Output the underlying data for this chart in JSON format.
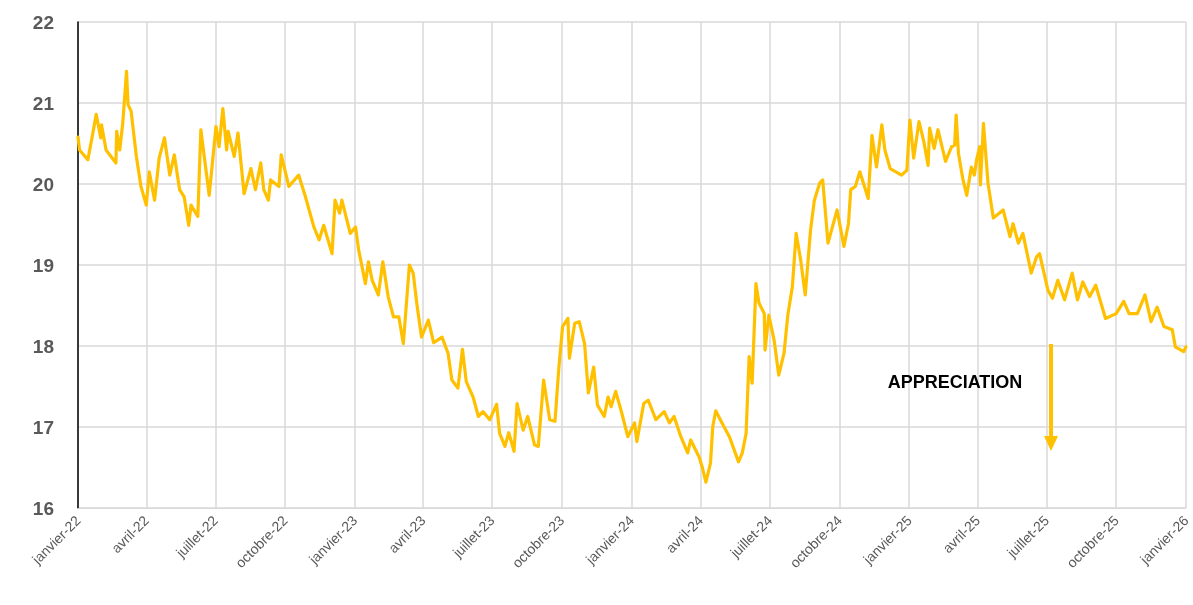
{
  "chart_data": {
    "type": "line",
    "annotations": [
      "APPRECIATION"
    ],
    "xlim": [
      "2022-01-01",
      "2026-01-01"
    ],
    "xticks": [
      {
        "value": "2022-01",
        "label": "janvier-22"
      },
      {
        "value": "2022-04",
        "label": "avril-22"
      },
      {
        "value": "2022-07",
        "label": "juillet-22"
      },
      {
        "value": "2022-10",
        "label": "octobre-22"
      },
      {
        "value": "2023-01",
        "label": "janvier-23"
      },
      {
        "value": "2023-04",
        "label": "avril-23"
      },
      {
        "value": "2023-07",
        "label": "juillet-23"
      },
      {
        "value": "2023-10",
        "label": "octobre-23"
      },
      {
        "value": "2024-01",
        "label": "janvier-24"
      },
      {
        "value": "2024-04",
        "label": "avril-24"
      },
      {
        "value": "2024-07",
        "label": "juillet-24"
      },
      {
        "value": "2024-10",
        "label": "octobre-24"
      },
      {
        "value": "2025-01",
        "label": "janvier-25"
      },
      {
        "value": "2025-04",
        "label": "avril-25"
      },
      {
        "value": "2025-07",
        "label": "juillet-25"
      },
      {
        "value": "2025-10",
        "label": "octobre-25"
      },
      {
        "value": "2026-01",
        "label": "janvier-26"
      }
    ],
    "ylim": [
      16,
      22
    ],
    "yticks": [
      16,
      17,
      18,
      19,
      20,
      21,
      22
    ],
    "grid": true,
    "marker": "none",
    "line_style": "solid",
    "x": [
      "2022-01-01",
      "2022-01-03",
      "2022-01-14",
      "2022-01-21",
      "2022-01-25",
      "2022-01-31",
      "2022-02-01",
      "2022-02-07",
      "2022-02-20",
      "2022-02-21",
      "2022-02-25",
      "2022-03-01",
      "2022-03-06",
      "2022-03-08",
      "2022-03-12",
      "2022-03-19",
      "2022-03-25",
      "2022-04-01",
      "2022-04-05",
      "2022-04-12",
      "2022-04-18",
      "2022-04-25",
      "2022-05-02",
      "2022-05-08",
      "2022-05-15",
      "2022-05-21",
      "2022-05-27",
      "2022-05-30",
      "2022-06-08",
      "2022-06-12",
      "2022-06-23",
      "2022-07-02",
      "2022-07-06",
      "2022-07-11",
      "2022-07-16",
      "2022-07-18",
      "2022-07-26",
      "2022-07-31",
      "2022-08-08",
      "2022-08-17",
      "2022-08-23",
      "2022-08-30",
      "2022-09-03",
      "2022-09-09",
      "2022-09-12",
      "2022-09-23",
      "2022-09-26",
      "2022-10-06",
      "2022-10-19",
      "2022-10-28",
      "2022-11-08",
      "2022-11-15",
      "2022-11-21",
      "2022-12-02",
      "2022-12-06",
      "2022-12-12",
      "2022-12-15",
      "2022-12-26",
      "2023-01-02",
      "2023-01-06",
      "2023-01-15",
      "2023-01-19",
      "2023-01-24",
      "2023-02-01",
      "2023-02-07",
      "2023-02-14",
      "2023-02-21",
      "2023-02-28",
      "2023-03-06",
      "2023-03-14",
      "2023-03-19",
      "2023-03-24",
      "2023-03-30",
      "2023-04-08",
      "2023-04-15",
      "2023-04-26",
      "2023-05-04",
      "2023-05-09",
      "2023-05-17",
      "2023-05-23",
      "2023-05-28",
      "2023-06-06",
      "2023-06-13",
      "2023-06-19",
      "2023-06-28",
      "2023-07-07",
      "2023-07-11",
      "2023-07-18",
      "2023-07-23",
      "2023-07-30",
      "2023-08-03",
      "2023-08-11",
      "2023-08-17",
      "2023-08-26",
      "2023-08-31",
      "2023-09-07",
      "2023-09-15",
      "2023-09-22",
      "2023-09-27",
      "2023-10-02",
      "2023-10-09",
      "2023-10-11",
      "2023-10-18",
      "2023-10-24",
      "2023-10-31",
      "2023-11-05",
      "2023-11-12",
      "2023-11-17",
      "2023-11-26",
      "2023-12-01",
      "2023-12-05",
      "2023-12-11",
      "2023-12-18",
      "2023-12-27",
      "2024-01-05",
      "2024-01-08",
      "2024-01-17",
      "2024-01-23",
      "2024-02-02",
      "2024-02-13",
      "2024-02-20",
      "2024-02-26",
      "2024-03-06",
      "2024-03-15",
      "2024-03-19",
      "2024-03-30",
      "2024-04-03",
      "2024-04-08",
      "2024-04-14",
      "2024-04-17",
      "2024-04-21",
      "2024-04-27",
      "2024-05-02",
      "2024-05-09",
      "2024-05-21",
      "2024-05-26",
      "2024-05-31",
      "2024-06-04",
      "2024-06-08",
      "2024-06-13",
      "2024-06-17",
      "2024-06-24",
      "2024-06-25",
      "2024-06-30",
      "2024-07-07",
      "2024-07-13",
      "2024-07-20",
      "2024-07-25",
      "2024-07-31",
      "2024-08-05",
      "2024-08-11",
      "2024-08-17",
      "2024-08-24",
      "2024-08-29",
      "2024-09-05",
      "2024-09-09",
      "2024-09-16",
      "2024-09-28",
      "2024-10-07",
      "2024-10-13",
      "2024-10-16",
      "2024-10-22",
      "2024-10-28",
      "2024-11-08",
      "2024-11-13",
      "2024-11-19",
      "2024-11-26",
      "2024-11-30",
      "2024-12-07",
      "2024-12-22",
      "2024-12-29",
      "2025-01-02",
      "2025-01-07",
      "2025-01-14",
      "2025-01-20",
      "2025-01-26",
      "2025-01-28",
      "2025-02-03",
      "2025-02-08",
      "2025-02-18",
      "2025-02-26",
      "2025-03-02",
      "2025-03-04",
      "2025-03-07",
      "2025-03-13",
      "2025-03-18",
      "2025-03-24",
      "2025-03-28",
      "2025-03-31",
      "2025-04-04",
      "2025-04-05",
      "2025-04-09",
      "2025-04-15",
      "2025-04-22",
      "2025-05-05",
      "2025-05-14",
      "2025-05-18",
      "2025-05-25",
      "2025-05-31",
      "2025-06-11",
      "2025-06-18",
      "2025-06-22",
      "2025-07-03",
      "2025-07-09",
      "2025-07-16",
      "2025-07-25",
      "2025-08-04",
      "2025-08-11",
      "2025-08-18",
      "2025-08-27",
      "2025-09-04",
      "2025-09-17",
      "2025-10-01",
      "2025-10-11",
      "2025-10-18",
      "2025-10-29",
      "2025-11-08",
      "2025-11-16",
      "2025-11-24",
      "2025-12-03",
      "2025-12-14",
      "2025-12-18",
      "2025-12-29",
      "2026-01-01"
    ],
    "series": [
      {
        "color": "#ffc000",
        "values": [
          20.58,
          20.42,
          20.3,
          20.65,
          20.86,
          20.57,
          20.73,
          20.42,
          20.26,
          20.65,
          20.42,
          20.75,
          21.39,
          20.98,
          20.9,
          20.34,
          19.97,
          19.74,
          20.15,
          19.8,
          20.32,
          20.57,
          20.11,
          20.36,
          19.93,
          19.84,
          19.49,
          19.74,
          19.6,
          20.67,
          19.86,
          20.71,
          20.46,
          20.93,
          20.42,
          20.65,
          20.34,
          20.63,
          19.88,
          20.19,
          19.93,
          20.26,
          19.93,
          19.8,
          20.05,
          19.97,
          20.36,
          19.97,
          20.11,
          19.84,
          19.47,
          19.31,
          19.49,
          19.14,
          19.8,
          19.64,
          19.8,
          19.39,
          19.47,
          19.19,
          18.77,
          19.04,
          18.81,
          18.63,
          19.04,
          18.61,
          18.36,
          18.36,
          18.03,
          19.0,
          18.9,
          18.51,
          18.11,
          18.32,
          18.04,
          18.11,
          17.91,
          17.58,
          17.48,
          17.96,
          17.56,
          17.37,
          17.13,
          17.19,
          17.09,
          17.28,
          16.92,
          16.76,
          16.93,
          16.7,
          17.29,
          16.96,
          17.13,
          16.78,
          16.76,
          17.58,
          17.09,
          17.07,
          17.72,
          18.24,
          18.34,
          17.85,
          18.28,
          18.3,
          18.03,
          17.42,
          17.74,
          17.27,
          17.13,
          17.37,
          17.25,
          17.44,
          17.21,
          16.88,
          17.05,
          16.82,
          17.29,
          17.33,
          17.09,
          17.19,
          17.05,
          17.13,
          16.88,
          16.68,
          16.84,
          16.63,
          16.51,
          16.32,
          16.55,
          17.0,
          17.2,
          17.09,
          17.0,
          16.88,
          16.57,
          16.68,
          16.92,
          17.87,
          17.54,
          18.77,
          18.53,
          18.4,
          17.95,
          18.38,
          18.07,
          17.64,
          17.91,
          18.38,
          18.73,
          19.39,
          19.06,
          18.63,
          19.43,
          19.8,
          20.01,
          20.05,
          19.27,
          19.68,
          19.23,
          19.51,
          19.93,
          19.97,
          20.15,
          19.82,
          20.6,
          20.21,
          20.73,
          20.42,
          20.19,
          20.11,
          20.17,
          20.79,
          20.32,
          20.77,
          20.54,
          20.23,
          20.69,
          20.44,
          20.67,
          20.28,
          20.46,
          20.48,
          20.85,
          20.38,
          20.05,
          19.86,
          20.21,
          20.11,
          20.3,
          20.46,
          19.99,
          20.75,
          20.01,
          19.58,
          19.68,
          19.35,
          19.51,
          19.27,
          19.39,
          18.9,
          19.1,
          19.14,
          18.69,
          18.59,
          18.81,
          18.57,
          18.9,
          18.57,
          18.79,
          18.61,
          18.75,
          18.34,
          18.4,
          18.55,
          18.4,
          18.4,
          18.63,
          18.3,
          18.48,
          18.24,
          18.2,
          17.99,
          17.93,
          17.99
        ]
      }
    ]
  }
}
